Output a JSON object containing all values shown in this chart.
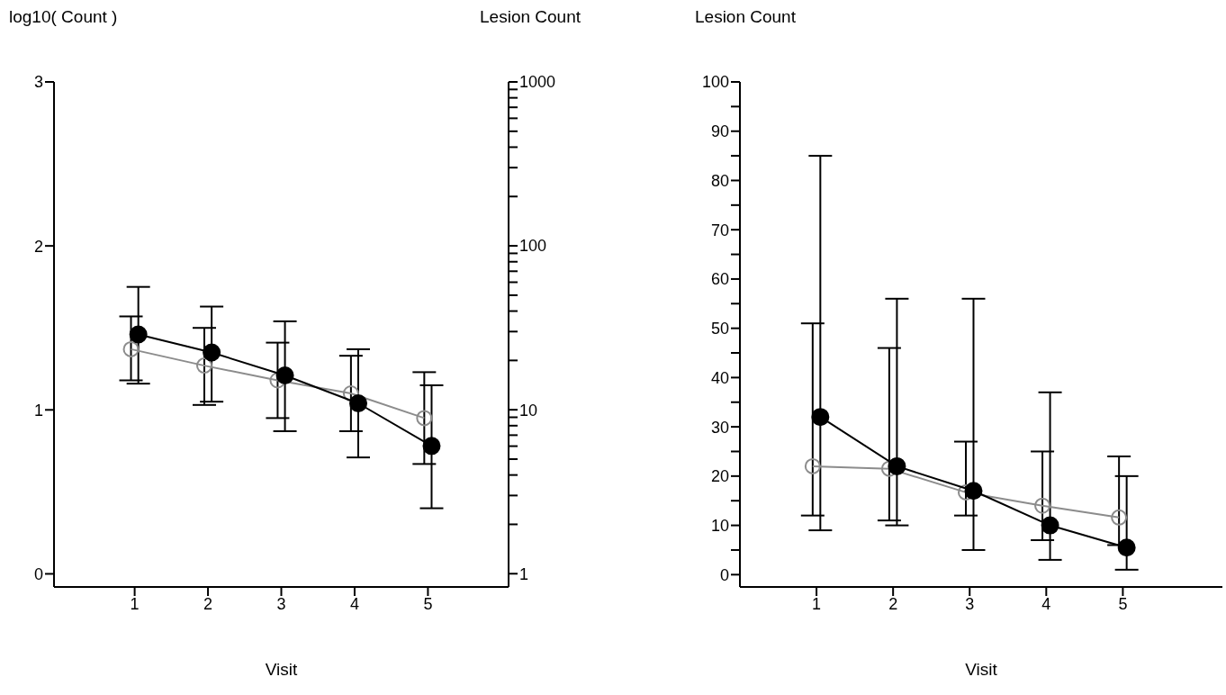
{
  "chart_data": [
    {
      "type": "line",
      "ylabel": "log10( Count )",
      "y2label": "Lesion Count",
      "xlabel": "Visit",
      "xlim": [
        -0.1,
        6.1
      ],
      "xticks": [
        1,
        2,
        3,
        4,
        5
      ],
      "ylim": [
        -0.08,
        3
      ],
      "yticks": [
        0,
        1,
        2,
        3
      ],
      "y2lim": [
        0.83,
        1000
      ],
      "y2ticks": [
        1,
        {
          "value": 2,
          "label": null
        },
        {
          "value": 3,
          "label": null
        },
        {
          "value": 4,
          "label": null
        },
        {
          "value": 5,
          "label": null
        },
        {
          "value": 6,
          "label": null
        },
        {
          "value": 7,
          "label": null
        },
        {
          "value": 8,
          "label": null
        },
        {
          "value": 9,
          "label": null
        },
        10,
        {
          "value": 20,
          "label": null
        },
        {
          "value": 30,
          "label": null
        },
        {
          "value": 40,
          "label": null
        },
        {
          "value": 50,
          "label": null
        },
        {
          "value": 60,
          "label": null
        },
        {
          "value": 70,
          "label": null
        },
        {
          "value": 80,
          "label": null
        },
        {
          "value": 90,
          "label": null
        },
        100,
        {
          "value": 200,
          "label": null
        },
        {
          "value": 300,
          "label": null
        },
        {
          "value": 400,
          "label": null
        },
        {
          "value": 500,
          "label": null
        },
        {
          "value": 600,
          "label": null
        },
        {
          "value": 700,
          "label": null
        },
        {
          "value": 800,
          "label": null
        },
        {
          "value": 900,
          "label": null
        },
        1000
      ],
      "log": "y2",
      "marker": "circle",
      "series": [
        {
          "color": "#8c8c8c",
          "x": [
            0.95,
            1.95,
            2.95,
            3.95,
            4.95
          ],
          "values": [
            1.37,
            1.27,
            1.18,
            1.1,
            0.95
          ],
          "errors": [
            [
              1.18,
              1.57
            ],
            [
              1.03,
              1.5
            ],
            [
              0.95,
              1.41
            ],
            [
              0.87,
              1.33
            ],
            [
              0.67,
              1.23
            ]
          ]
        },
        {
          "color": "#000000",
          "x": [
            1.05,
            2.05,
            3.05,
            4.05,
            5.05
          ],
          "values": [
            1.46,
            1.35,
            1.21,
            1.04,
            0.78
          ],
          "errors": [
            [
              1.16,
              1.75
            ],
            [
              1.05,
              1.63
            ],
            [
              0.87,
              1.54
            ],
            [
              0.71,
              1.37
            ],
            [
              0.4,
              1.15
            ]
          ]
        }
      ]
    },
    {
      "type": "line",
      "ylabel": "Lesion Count",
      "xlabel": "Visit",
      "xlim": [
        0,
        6.3
      ],
      "xticks": [
        1,
        2,
        3,
        4,
        5
      ],
      "ylim": [
        -2.5,
        100
      ],
      "yticks": [
        0,
        {
          "value": 5,
          "label": null
        },
        10,
        {
          "value": 15,
          "label": null
        },
        20,
        {
          "value": 25,
          "label": null
        },
        30,
        {
          "value": 35,
          "label": null
        },
        40,
        {
          "value": 45,
          "label": null
        },
        50,
        {
          "value": 55,
          "label": null
        },
        60,
        {
          "value": 65,
          "label": null
        },
        70,
        {
          "value": 75,
          "label": null
        },
        80,
        {
          "value": 85,
          "label": null
        },
        90,
        {
          "value": 95,
          "label": null
        },
        100
      ],
      "marker": "circle",
      "series": [
        {
          "color": "#8c8c8c",
          "x": [
            0.95,
            1.95,
            2.95,
            3.95,
            4.95
          ],
          "values": [
            22,
            21.5,
            16.7,
            14,
            11.6
          ],
          "errors": [
            [
              12,
              51
            ],
            [
              11,
              46
            ],
            [
              12,
              27
            ],
            [
              7,
              25
            ],
            [
              6,
              24
            ]
          ]
        },
        {
          "color": "#000000",
          "x": [
            1.05,
            2.05,
            3.05,
            4.05,
            5.05
          ],
          "values": [
            32,
            22,
            17,
            10,
            5.5
          ],
          "errors": [
            [
              9,
              85
            ],
            [
              10,
              56
            ],
            [
              5,
              56
            ],
            [
              3,
              37
            ],
            [
              1,
              20
            ]
          ]
        }
      ]
    }
  ]
}
